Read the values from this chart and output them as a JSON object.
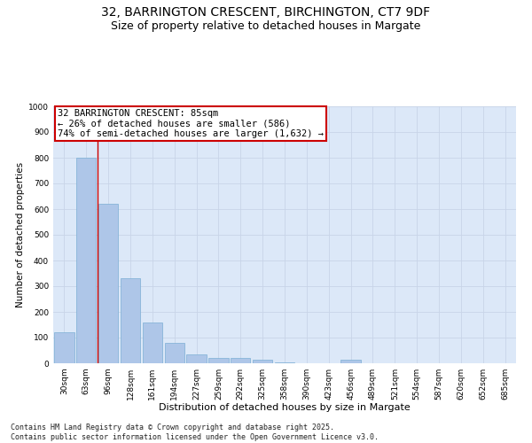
{
  "title_line1": "32, BARRINGTON CRESCENT, BIRCHINGTON, CT7 9DF",
  "title_line2": "Size of property relative to detached houses in Margate",
  "xlabel": "Distribution of detached houses by size in Margate",
  "ylabel": "Number of detached properties",
  "categories": [
    "30sqm",
    "63sqm",
    "96sqm",
    "128sqm",
    "161sqm",
    "194sqm",
    "227sqm",
    "259sqm",
    "292sqm",
    "325sqm",
    "358sqm",
    "390sqm",
    "423sqm",
    "456sqm",
    "489sqm",
    "521sqm",
    "554sqm",
    "587sqm",
    "620sqm",
    "652sqm",
    "685sqm"
  ],
  "values": [
    120,
    800,
    620,
    330,
    160,
    80,
    35,
    22,
    20,
    13,
    5,
    0,
    0,
    15,
    0,
    0,
    0,
    0,
    0,
    0,
    0
  ],
  "bar_color": "#aec6e8",
  "bar_edge_color": "#7bafd4",
  "vline_x_index": 1.5,
  "vline_color": "#cc0000",
  "annotation_box_text": "32 BARRINGTON CRESCENT: 85sqm\n← 26% of detached houses are smaller (586)\n74% of semi-detached houses are larger (1,632) →",
  "box_edge_color": "#cc0000",
  "ylim": [
    0,
    1000
  ],
  "yticks": [
    0,
    100,
    200,
    300,
    400,
    500,
    600,
    700,
    800,
    900,
    1000
  ],
  "grid_color": "#c8d4e8",
  "background_color": "#dce8f8",
  "footer_line1": "Contains HM Land Registry data © Crown copyright and database right 2025.",
  "footer_line2": "Contains public sector information licensed under the Open Government Licence v3.0.",
  "title_fontsize": 10,
  "subtitle_fontsize": 9,
  "tick_fontsize": 6.5,
  "xlabel_fontsize": 8,
  "ylabel_fontsize": 7.5,
  "footer_fontsize": 6,
  "annotation_fontsize": 7.5
}
